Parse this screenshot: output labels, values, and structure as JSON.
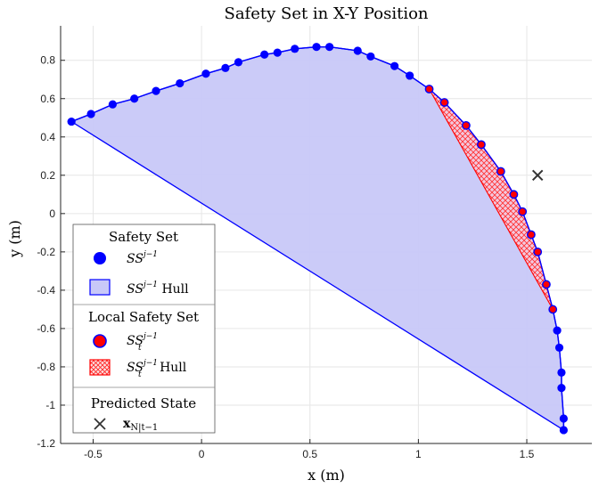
{
  "chart_data": {
    "type": "scatter",
    "title": "Safety Set in X-Y Position",
    "xlabel": "x (m)",
    "ylabel": "y (m)",
    "xlim": [
      -0.65,
      1.8
    ],
    "ylim": [
      -1.2,
      0.98
    ],
    "xticks": [
      -0.5,
      0,
      0.5,
      1,
      1.5
    ],
    "xtick_labels": [
      "-0.5",
      "0",
      "0.5",
      "1",
      "1.5"
    ],
    "yticks": [
      -1.2,
      -1,
      -0.8,
      -0.6,
      -0.4,
      -0.2,
      0,
      0.2,
      0.4,
      0.6,
      0.8
    ],
    "ytick_labels": [
      "-1.2",
      "-1",
      "-0.8",
      "-0.6",
      "-0.4",
      "-0.2",
      "0",
      "0.2",
      "0.4",
      "0.6",
      "0.8"
    ],
    "grid": true,
    "legend_position": "bottom-left",
    "colors": {
      "safe_set": "#0000ff",
      "safe_hull_fill": "#c8c8f8",
      "local_set": "#ff0000",
      "predicted": "#333333",
      "grid": "#e6e6e6"
    },
    "series": [
      {
        "name": "SS^{j-1}",
        "x": [
          -0.6,
          -0.51,
          -0.41,
          -0.31,
          -0.21,
          -0.1,
          0.02,
          0.11,
          0.17,
          0.29,
          0.35,
          0.43,
          0.53,
          0.59,
          0.72,
          0.78,
          0.89,
          0.96,
          1.05,
          1.12,
          1.22,
          1.29,
          1.38,
          1.44,
          1.48,
          1.52,
          1.55,
          1.59,
          1.62,
          1.64,
          1.65,
          1.66,
          1.66,
          1.67,
          1.67
        ],
        "y": [
          0.48,
          0.52,
          0.57,
          0.6,
          0.64,
          0.68,
          0.73,
          0.76,
          0.79,
          0.83,
          0.84,
          0.86,
          0.87,
          0.87,
          0.85,
          0.82,
          0.77,
          0.72,
          0.65,
          0.58,
          0.46,
          0.36,
          0.22,
          0.1,
          0.01,
          -0.11,
          -0.2,
          -0.37,
          -0.5,
          -0.61,
          -0.7,
          -0.83,
          -0.91,
          -1.07,
          -1.13
        ]
      },
      {
        "name": "SS_t^{j-1}",
        "x": [
          1.05,
          1.12,
          1.22,
          1.29,
          1.38,
          1.44,
          1.48,
          1.52,
          1.55,
          1.59,
          1.62
        ],
        "y": [
          0.65,
          0.58,
          0.46,
          0.36,
          0.22,
          0.1,
          0.01,
          -0.11,
          -0.2,
          -0.37,
          -0.5
        ]
      },
      {
        "name": "x_{N|t-1}",
        "x": [
          1.55
        ],
        "y": [
          0.2
        ]
      }
    ]
  },
  "legend": {
    "safety_set_heading": "Safety Set",
    "ss_label": "SS",
    "ss_sup": "j−1",
    "ss_hull_label": "SS",
    "ss_hull_sup": "j−1",
    "ss_hull_suffix": " Hull",
    "local_heading": "Local Safety Set",
    "sst_label": "SS",
    "sst_sup": "j−1",
    "sst_sub": "t",
    "sst_hull_label": "SS",
    "sst_hull_sup": "j−1",
    "sst_hull_sub": "t",
    "sst_hull_suffix": " Hull",
    "predicted_heading": "Predicted State",
    "pred_label": "x",
    "pred_sub": "N|t−1"
  }
}
